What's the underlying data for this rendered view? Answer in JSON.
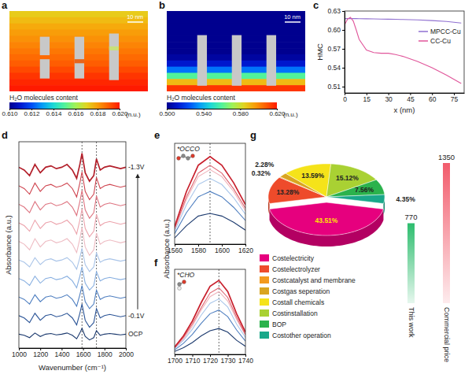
{
  "chart_data": [
    {
      "panel_label": "a",
      "type": "heatmap",
      "values": [
        0.6172,
        0.6175,
        0.6178,
        0.618,
        0.6182,
        0.6184,
        0.6186,
        0.6188,
        0.619,
        0.6193,
        0.6196,
        0.6198,
        0.62
      ],
      "colorbar": {
        "range": [
          0.61,
          0.62
        ],
        "ticks": [
          {
            "value": 0.61,
            "label": "0.610"
          },
          0.612,
          0.614,
          0.616,
          0.618,
          {
            "value": 0.62,
            "label": "0.620"
          }
        ],
        "title": "H₂O molecules content",
        "unit": "(n.u.)"
      },
      "annotations": [
        "10 nm"
      ]
    },
    {
      "panel_label": "b",
      "type": "heatmap",
      "values": [
        0.5,
        0.5,
        0.5,
        0.5,
        0.5,
        0.5,
        0.5,
        0.503,
        0.512,
        0.53,
        0.56,
        0.59,
        0.615
      ],
      "colorbar": {
        "range": [
          0.5,
          0.62
        ],
        "ticks": [
          {
            "value": 0.5,
            "label": "0.500"
          },
          {
            "value": 0.54,
            "label": "0.540"
          },
          {
            "value": 0.58,
            "label": "0.580"
          },
          {
            "value": 0.62,
            "label": "0.620"
          }
        ],
        "title": "H₂O molecules content",
        "unit": "(n.u.)"
      },
      "annotations": [
        "10 nm"
      ]
    },
    {
      "panel_label": "c",
      "type": "line",
      "x": [
        0,
        2,
        4,
        6,
        8,
        10,
        15,
        20,
        25,
        30,
        35,
        40,
        50,
        60,
        70,
        80
      ],
      "series": [
        {
          "name": "MPCC-Cu",
          "color": "#8f6fd0",
          "values": [
            0.618,
            0.618,
            0.618,
            0.618,
            0.618,
            0.6178,
            0.6176,
            0.6175,
            0.6172,
            0.617,
            0.6168,
            0.6165,
            0.616,
            0.6148,
            0.6135,
            0.611
          ]
        },
        {
          "name": "CC-Cu",
          "color": "#e0559a",
          "values": [
            0.608,
            0.617,
            0.62,
            0.614,
            0.6,
            0.585,
            0.568,
            0.564,
            0.563,
            0.563,
            0.561,
            0.558,
            0.55,
            0.54,
            0.528,
            0.515
          ]
        }
      ],
      "xlim": [
        0,
        82
      ],
      "xticks": [
        0,
        15,
        30,
        45,
        60,
        75
      ],
      "ylim": [
        0.5,
        0.63
      ],
      "yticks": [
        0.51,
        0.54,
        0.57,
        {
          "value": 0.6,
          "label": "0.60"
        },
        0.63
      ],
      "x_label": "x (nm)",
      "y_label": "HMC",
      "legend": "right"
    },
    {
      "panel_label": "d",
      "type": "line",
      "x": [
        1000,
        1050,
        1100,
        1150,
        1200,
        1250,
        1300,
        1350,
        1400,
        1450,
        1500,
        1540,
        1570,
        1590,
        1620,
        1660,
        1700,
        1725,
        1760,
        1800,
        1850,
        1900,
        1950,
        2000
      ],
      "series": [
        {
          "color": "#1c3a6e",
          "values": [
            0,
            -0.05,
            -0.15,
            0.05,
            -0.1,
            0,
            0.03,
            -0.03,
            0,
            0.05,
            -0.05,
            -0.2,
            0.05,
            0.25,
            -0.1,
            -0.25,
            -0.15,
            0.15,
            -0.05,
            0,
            0.03,
            0,
            -0.03,
            0
          ]
        },
        {
          "color": "#2c5597",
          "values": [
            0.8,
            0.7,
            0.5,
            0.9,
            0.6,
            0.8,
            0.85,
            0.75,
            0.8,
            0.9,
            0.7,
            0.4,
            0.9,
            1.3,
            0.6,
            0.3,
            0.5,
            1.1,
            0.7,
            0.8,
            0.85,
            0.8,
            0.75,
            0.8
          ]
        },
        {
          "color": "#4f7fc0",
          "values": [
            1.6,
            1.5,
            1.3,
            1.7,
            1.4,
            1.6,
            1.65,
            1.55,
            1.6,
            1.7,
            1.5,
            1.2,
            1.7,
            2.1,
            1.4,
            1.1,
            1.3,
            1.9,
            1.5,
            1.6,
            1.65,
            1.6,
            1.55,
            1.6
          ]
        },
        {
          "color": "#86aee0",
          "values": [
            2.4,
            2.3,
            2.1,
            2.5,
            2.2,
            2.4,
            2.45,
            2.35,
            2.4,
            2.5,
            2.3,
            2.0,
            2.5,
            2.9,
            2.2,
            1.9,
            2.1,
            2.7,
            2.3,
            2.4,
            2.45,
            2.4,
            2.35,
            2.4
          ]
        },
        {
          "color": "#a9c4e8",
          "values": [
            3.2,
            3.1,
            2.9,
            3.3,
            3.0,
            3.2,
            3.25,
            3.15,
            3.2,
            3.3,
            3.1,
            2.8,
            3.3,
            3.7,
            3.0,
            2.7,
            2.9,
            3.5,
            3.1,
            3.2,
            3.25,
            3.2,
            3.15,
            3.2
          ]
        },
        {
          "color": "#eebcc3",
          "values": [
            4.0,
            3.88,
            3.64,
            4.12,
            3.76,
            4.0,
            4.06,
            3.94,
            4.0,
            4.12,
            3.88,
            3.52,
            4.12,
            4.6,
            3.76,
            3.4,
            3.64,
            4.36,
            3.88,
            4.0,
            4.06,
            4.0,
            3.94,
            4.0
          ]
        },
        {
          "color": "#eca3ac",
          "values": [
            4.8,
            4.68,
            4.44,
            4.92,
            4.56,
            4.8,
            4.86,
            4.74,
            4.8,
            4.92,
            4.68,
            4.32,
            4.92,
            5.4,
            4.56,
            4.2,
            4.44,
            5.16,
            4.68,
            4.8,
            4.86,
            4.8,
            4.74,
            4.8
          ]
        },
        {
          "color": "#de7480",
          "values": [
            5.6,
            5.48,
            5.24,
            5.72,
            5.36,
            5.6,
            5.66,
            5.54,
            5.6,
            5.72,
            5.48,
            5.12,
            5.72,
            6.2,
            5.36,
            5.0,
            5.24,
            5.96,
            5.48,
            5.6,
            5.66,
            5.6,
            5.54,
            5.6
          ]
        },
        {
          "color": "#cf4550",
          "values": [
            6.4,
            6.28,
            6.04,
            6.52,
            6.16,
            6.4,
            6.46,
            6.34,
            6.4,
            6.52,
            6.28,
            5.92,
            6.52,
            7.0,
            6.16,
            5.8,
            6.04,
            6.76,
            6.28,
            6.4,
            6.46,
            6.4,
            6.34,
            6.4
          ]
        },
        {
          "color": "#b3202b",
          "values": [
            7.2,
            7.08,
            6.84,
            7.32,
            6.96,
            7.2,
            7.26,
            7.14,
            7.2,
            7.32,
            7.08,
            6.72,
            7.32,
            7.8,
            6.96,
            6.6,
            6.84,
            7.56,
            7.08,
            7.2,
            7.26,
            7.2,
            7.14,
            7.2
          ]
        }
      ],
      "xlim": [
        1000,
        2000
      ],
      "xticks": [
        1000,
        1200,
        1400,
        1600,
        1800,
        2000
      ],
      "ylim": [
        -0.6,
        8.3
      ],
      "tick_labels": "x",
      "x_label": "Wavenumber (cm⁻¹)",
      "y_label": "Absorbance (a.u.)",
      "vlines": [
        1590,
        1725
      ],
      "annotations": [
        "-1.3V",
        "-0.1V",
        "OCP"
      ]
    },
    {
      "panel_label": "e",
      "type": "line",
      "x": [
        1560,
        1570,
        1580,
        1590,
        1600,
        1610,
        1620
      ],
      "series": [
        {
          "color": "#1c3a6e",
          "values": [
            0.07,
            0.21,
            0.32,
            0.35,
            0.32,
            0.25,
            0.16
          ]
        },
        {
          "color": "#4f7fc0",
          "values": [
            0.12,
            0.36,
            0.54,
            0.6,
            0.54,
            0.42,
            0.27
          ]
        },
        {
          "color": "#a9c6ea",
          "values": [
            0.15,
            0.45,
            0.68,
            0.75,
            0.68,
            0.53,
            0.34
          ]
        },
        {
          "color": "#f0b6bd",
          "values": [
            0.17,
            0.51,
            0.77,
            0.85,
            0.77,
            0.6,
            0.38
          ]
        },
        {
          "color": "#de6470",
          "values": [
            0.18,
            0.54,
            0.81,
            0.9,
            0.81,
            0.63,
            0.41
          ]
        },
        {
          "color": "#c8202d",
          "values": [
            0.2,
            0.6,
            0.9,
            1.0,
            0.9,
            0.7,
            0.45
          ]
        }
      ],
      "xlim": [
        1560,
        1620
      ],
      "xticks": [
        1560,
        1580,
        1600,
        1620
      ],
      "ylim": [
        0,
        1.15
      ],
      "tick_labels": "x",
      "y_label": "Absorbance (a.u.)",
      "vlines": [
        1590
      ],
      "annotations": [
        "*OCCO"
      ]
    },
    {
      "panel_label": "f",
      "type": "line",
      "x": [
        1700,
        1705,
        1710,
        1715,
        1720,
        1725,
        1730,
        1735,
        1740
      ],
      "series": [
        {
          "color": "#1c3a6e",
          "values": [
            0.04,
            0.09,
            0.16,
            0.25,
            0.32,
            0.35,
            0.3,
            0.19,
            0.11
          ]
        },
        {
          "color": "#4f7fc0",
          "values": [
            0.06,
            0.15,
            0.27,
            0.42,
            0.55,
            0.6,
            0.51,
            0.33,
            0.18
          ]
        },
        {
          "color": "#a9c6ea",
          "values": [
            0.08,
            0.19,
            0.34,
            0.53,
            0.69,
            0.75,
            0.64,
            0.41,
            0.23
          ]
        },
        {
          "color": "#f0b6bd",
          "values": [
            0.09,
            0.21,
            0.38,
            0.6,
            0.78,
            0.85,
            0.72,
            0.47,
            0.26
          ]
        },
        {
          "color": "#de6470",
          "values": [
            0.09,
            0.23,
            0.41,
            0.63,
            0.83,
            0.9,
            0.77,
            0.5,
            0.27
          ]
        },
        {
          "color": "#c8202d",
          "values": [
            0.1,
            0.25,
            0.45,
            0.7,
            0.92,
            1.0,
            0.85,
            0.55,
            0.3
          ]
        }
      ],
      "xlim": [
        1700,
        1740
      ],
      "xticks": [
        1700,
        1710,
        1720,
        1730,
        1740
      ],
      "ylim": [
        0,
        1.15
      ],
      "tick_labels": "x",
      "vlines": [
        1725
      ],
      "annotations": [
        "*CHO"
      ]
    },
    {
      "panel_label": "g",
      "type": "pie",
      "categories": [
        "Costelectricity",
        "Costelectrolyzer",
        "Costcatalyst and membrane",
        "Costgas seperation",
        "Costall chemicals",
        "Costinstallation",
        "BOP",
        "Costother operation"
      ],
      "values": [
        43.51,
        13.28,
        0.32,
        2.28,
        13.59,
        15.12,
        7.56,
        4.35
      ],
      "value_labels": [
        "43.51%",
        "13.28%",
        "0.32%",
        "2.28%",
        "13.59%",
        "15.12%",
        "7.56%",
        "4.35%"
      ],
      "colors": [
        "#e6007e",
        "#ee4b2b",
        "#f39a1e",
        "#d9a520",
        "#f5e31a",
        "#a9d133",
        "#2bb24c",
        "#1aa88a"
      ],
      "data_labels": true,
      "legend": "bottom-left"
    },
    {
      "type": "bar",
      "categories": [
        "This work",
        "Commercial price"
      ],
      "values": [
        770,
        1350
      ],
      "colors": [
        "#2dbd6e",
        "#f25c6c"
      ],
      "ylim": [
        0,
        1350
      ],
      "tick_labels": false,
      "data_labels": true
    }
  ]
}
